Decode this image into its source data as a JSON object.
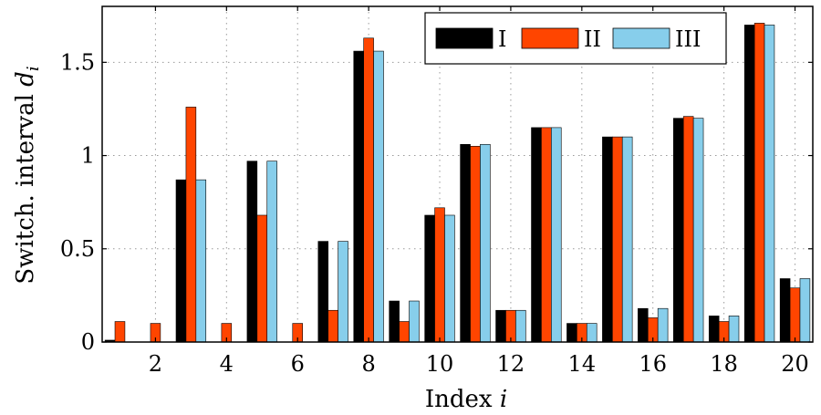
{
  "chart_data": {
    "type": "bar",
    "title": "",
    "xlabel": "Index ",
    "xlabel_var": "i",
    "ylabel": "Switch. interval ",
    "ylabel_var": "d",
    "ylabel_sub": "i",
    "x": [
      1,
      2,
      3,
      4,
      5,
      6,
      7,
      8,
      9,
      10,
      11,
      12,
      13,
      14,
      15,
      16,
      17,
      18,
      19,
      20
    ],
    "x_ticks": [
      2,
      4,
      6,
      8,
      10,
      12,
      14,
      16,
      18,
      20
    ],
    "y_ticks": [
      0,
      0.5,
      1,
      1.5
    ],
    "y_tick_labels": [
      "0",
      "0.5",
      "1",
      "1.5"
    ],
    "ylim": [
      0,
      1.8
    ],
    "xlim": [
      0.5,
      20.5
    ],
    "grid": true,
    "legend_position": "top-right",
    "series": [
      {
        "name": "I",
        "color": "#000000",
        "values": [
          0.01,
          0,
          0.87,
          0,
          0.97,
          0,
          0.54,
          1.56,
          0.22,
          0.68,
          1.06,
          0.17,
          1.15,
          0.1,
          1.1,
          0.18,
          1.2,
          0.14,
          1.7,
          0.34
        ]
      },
      {
        "name": "II",
        "color": "#ff4500",
        "values": [
          0.11,
          0.1,
          1.26,
          0.1,
          0.68,
          0.1,
          0.17,
          1.63,
          0.11,
          0.72,
          1.05,
          0.17,
          1.15,
          0.1,
          1.1,
          0.13,
          1.21,
          0.11,
          1.71,
          0.29
        ]
      },
      {
        "name": "III",
        "color": "#87ceeb",
        "values": [
          0,
          0,
          0.87,
          0,
          0.97,
          0,
          0.54,
          1.56,
          0.22,
          0.68,
          1.06,
          0.17,
          1.15,
          0.1,
          1.1,
          0.18,
          1.2,
          0.14,
          1.7,
          0.34
        ]
      }
    ]
  }
}
